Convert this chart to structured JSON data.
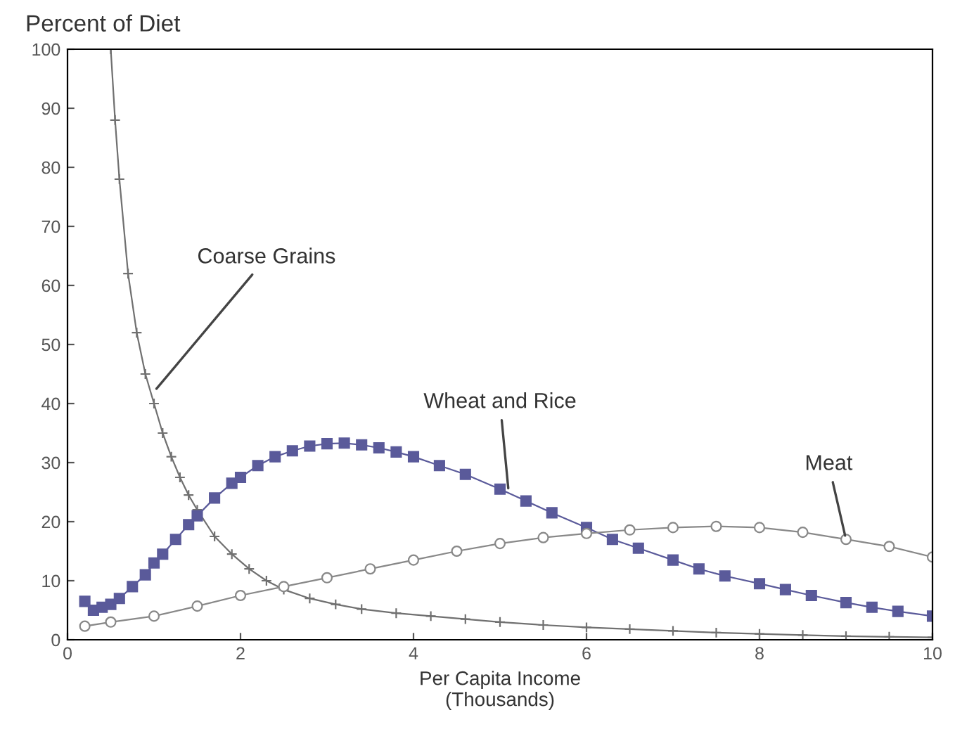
{
  "chart_data": {
    "type": "line",
    "ylabel": "Percent of Diet",
    "xlabel": "Per Capita Income\n(Thousands)",
    "xlim": [
      0,
      10
    ],
    "ylim": [
      0,
      100
    ],
    "xticks": [
      0,
      2,
      4,
      6,
      8,
      10
    ],
    "yticks": [
      0,
      10,
      20,
      30,
      40,
      50,
      60,
      70,
      80,
      90,
      100
    ],
    "series": [
      {
        "color": "#707070",
        "marker": "cross",
        "x": [
          0.5,
          0.55,
          0.6,
          0.7,
          0.8,
          0.9,
          1.0,
          1.1,
          1.2,
          1.3,
          1.4,
          1.5,
          1.7,
          1.9,
          2.1,
          2.3,
          2.5,
          2.8,
          3.1,
          3.4,
          3.8,
          4.2,
          4.6,
          5.0,
          5.5,
          6.0,
          6.5,
          7.0,
          7.5,
          8.0,
          8.5,
          9.0,
          9.5,
          10.0
        ],
        "values": [
          100,
          88,
          78,
          62,
          52,
          45,
          40,
          35,
          31,
          27.5,
          24.5,
          22,
          17.5,
          14.5,
          12,
          10,
          8.5,
          7,
          6,
          5.2,
          4.5,
          4,
          3.5,
          3,
          2.5,
          2.1,
          1.8,
          1.5,
          1.2,
          1,
          0.8,
          0.6,
          0.5,
          0.4
        ]
      },
      {
        "color": "#5a5a9a",
        "marker": "square",
        "x": [
          0.2,
          0.3,
          0.4,
          0.5,
          0.6,
          0.75,
          0.9,
          1.0,
          1.1,
          1.25,
          1.4,
          1.5,
          1.7,
          1.9,
          2.0,
          2.2,
          2.4,
          2.6,
          2.8,
          3.0,
          3.2,
          3.4,
          3.6,
          3.8,
          4.0,
          4.3,
          4.6,
          5.0,
          5.3,
          5.6,
          6.0,
          6.3,
          6.6,
          7.0,
          7.3,
          7.6,
          8.0,
          8.3,
          8.6,
          9.0,
          9.3,
          9.6,
          10.0
        ],
        "values": [
          6.5,
          5,
          5.5,
          6,
          7,
          9,
          11,
          13,
          14.5,
          17,
          19.5,
          21,
          24,
          26.5,
          27.5,
          29.5,
          31,
          32,
          32.8,
          33.2,
          33.3,
          33,
          32.5,
          31.8,
          31,
          29.5,
          28,
          25.5,
          23.5,
          21.5,
          19,
          17,
          15.5,
          13.5,
          12,
          10.8,
          9.5,
          8.5,
          7.5,
          6.3,
          5.5,
          4.8,
          4
        ]
      },
      {
        "color": "#888888",
        "marker": "circle",
        "x": [
          0.2,
          0.5,
          1.0,
          1.5,
          2.0,
          2.5,
          3.0,
          3.5,
          4.0,
          4.5,
          5.0,
          5.5,
          6.0,
          6.5,
          7.0,
          7.5,
          8.0,
          8.5,
          9.0,
          9.5,
          10.0
        ],
        "values": [
          2.3,
          3,
          4,
          5.7,
          7.5,
          9,
          10.5,
          12,
          13.5,
          15,
          16.3,
          17.3,
          18,
          18.6,
          19,
          19.2,
          19,
          18.2,
          17,
          15.8,
          14
        ]
      }
    ],
    "annotations": [
      {
        "text": "Coarse Grains",
        "x": 1.0,
        "y": 42
      },
      {
        "text": "Wheat and Rice",
        "x": 5.1,
        "y": 25
      },
      {
        "text": "Meat",
        "x": 9.0,
        "y": 17
      }
    ],
    "grid": false,
    "legend": false
  }
}
